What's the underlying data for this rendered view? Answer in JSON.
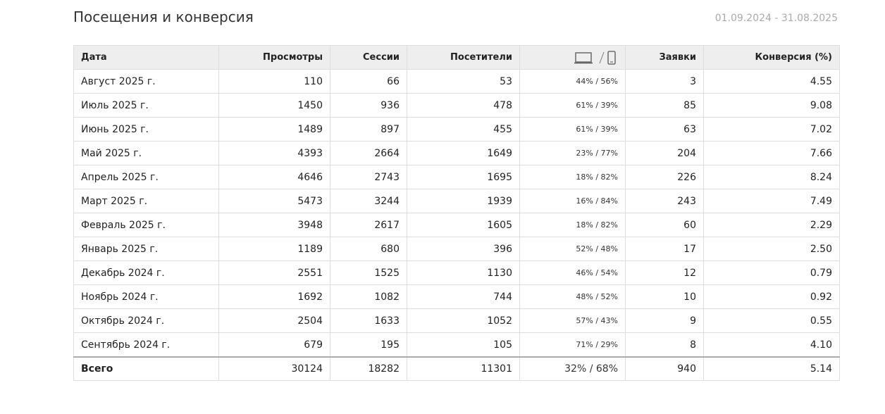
{
  "header": {
    "title": "Посещения и конверсия",
    "date_range": "01.09.2024 - 31.08.2025"
  },
  "table": {
    "columns": [
      "Дата",
      "Просмотры",
      "Сессии",
      "Посетители",
      null,
      "Заявки",
      "Конверсия (%)"
    ],
    "rows": [
      [
        "Август 2025 г.",
        "110",
        "66",
        "53",
        "44% / 56%",
        "3",
        "4.55"
      ],
      [
        "Июль 2025 г.",
        "1450",
        "936",
        "478",
        "61% / 39%",
        "85",
        "9.08"
      ],
      [
        "Июнь 2025 г.",
        "1489",
        "897",
        "455",
        "61% / 39%",
        "63",
        "7.02"
      ],
      [
        "Май 2025 г.",
        "4393",
        "2664",
        "1649",
        "23% / 77%",
        "204",
        "7.66"
      ],
      [
        "Апрель 2025 г.",
        "4646",
        "2743",
        "1695",
        "18% / 82%",
        "226",
        "8.24"
      ],
      [
        "Март 2025 г.",
        "5473",
        "3244",
        "1939",
        "16% / 84%",
        "243",
        "7.49"
      ],
      [
        "Февраль 2025 г.",
        "3948",
        "2617",
        "1605",
        "18% / 82%",
        "60",
        "2.29"
      ],
      [
        "Январь 2025 г.",
        "1189",
        "680",
        "396",
        "52% / 48%",
        "17",
        "2.50"
      ],
      [
        "Декабрь 2024 г.",
        "2551",
        "1525",
        "1130",
        "46% / 54%",
        "12",
        "0.79"
      ],
      [
        "Ноябрь 2024 г.",
        "1692",
        "1082",
        "744",
        "48% / 52%",
        "10",
        "0.92"
      ],
      [
        "Октябрь 2024 г.",
        "2504",
        "1633",
        "1052",
        "57% / 43%",
        "9",
        "0.55"
      ],
      [
        "Сентябрь 2024 г.",
        "679",
        "195",
        "105",
        "71% / 29%",
        "8",
        "4.10"
      ]
    ],
    "total": [
      "Всего",
      "30124",
      "18282",
      "11301",
      "32% / 68%",
      "940",
      "5.14"
    ]
  }
}
